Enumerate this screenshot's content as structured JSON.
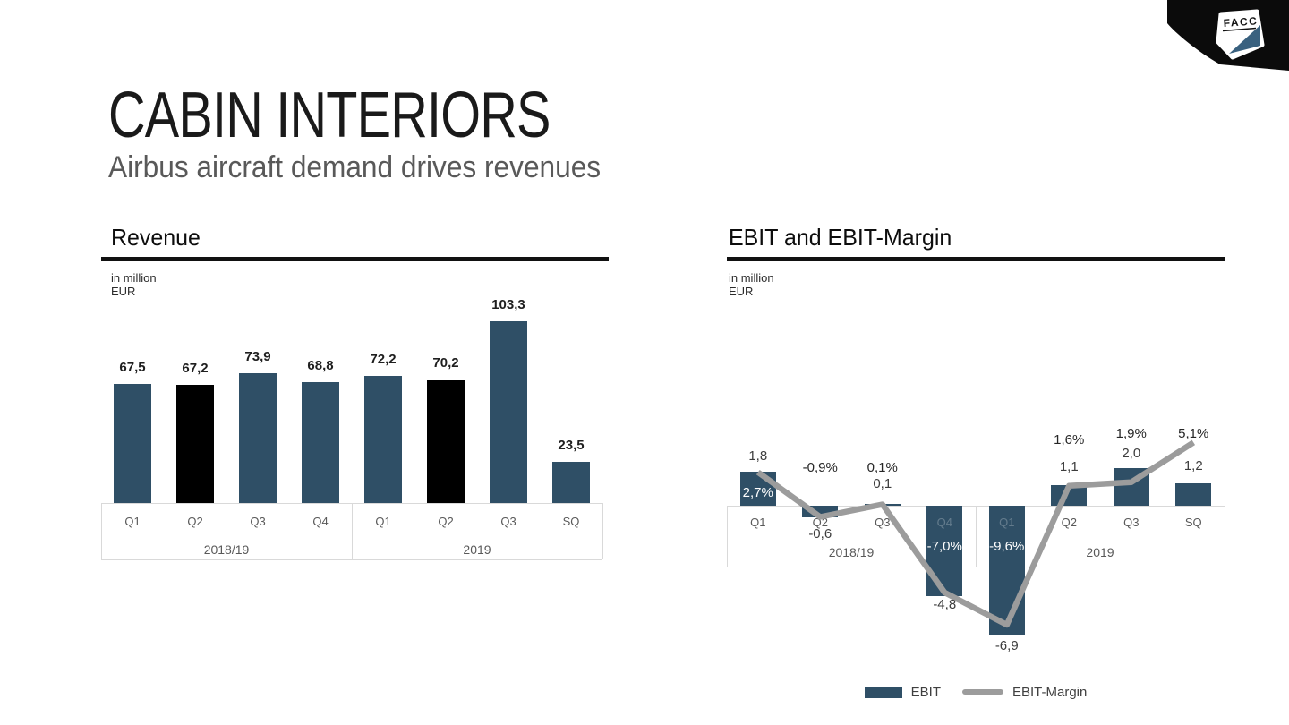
{
  "meta": {
    "brand": "FACC"
  },
  "header": {
    "title": "CABIN INTERIORS",
    "subtitle": "Airbus aircraft demand drives revenues"
  },
  "revenue": {
    "heading": "Revenue",
    "unit_line1": "in million",
    "unit_line2": "EUR",
    "categories": [
      "Q1",
      "Q2",
      "Q3",
      "Q4",
      "Q1",
      "Q2",
      "Q3",
      "SQ"
    ],
    "group_labels": [
      "2018/19",
      "2019"
    ],
    "values": [
      67.5,
      67.2,
      73.9,
      68.8,
      72.2,
      70.2,
      103.3,
      23.5
    ],
    "value_labels": [
      "67,5",
      "67,2",
      "73,9",
      "68,8",
      "72,2",
      "70,2",
      "103,3",
      "23,5"
    ],
    "highlight_indices": [
      1,
      5
    ]
  },
  "ebit": {
    "heading": "EBIT and EBIT-Margin",
    "unit_line1": "in million",
    "unit_line2": "EUR",
    "categories": [
      "Q1",
      "Q2",
      "Q3",
      "Q4",
      "Q1",
      "Q2",
      "Q3",
      "SQ"
    ],
    "group_labels": [
      "2018/19",
      "2019"
    ],
    "bar_values": [
      1.8,
      -0.6,
      0.1,
      -4.8,
      -6.9,
      1.1,
      2.0,
      1.2
    ],
    "bar_labels": [
      "1,8",
      "-0,6",
      "0,1",
      "-4,8",
      "-6,9",
      "1,1",
      "2,0",
      "1,2"
    ],
    "margin_values": [
      2.7,
      -0.9,
      0.1,
      -7.0,
      -9.6,
      1.6,
      1.9,
      5.1
    ],
    "margin_labels": [
      "2,7%",
      "-0,9%",
      "0,1%",
      "-7,0%",
      "-9,6%",
      "1,6%",
      "1,9%",
      "5,1%"
    ]
  },
  "legend": {
    "ebit": "EBIT",
    "margin": "EBIT-Margin"
  },
  "colors": {
    "bar": "#2F4F66",
    "bar_highlight": "#000000",
    "margin_line": "#9C9C9C",
    "logo_fin": "#39617F",
    "frame": "#D9D9D9"
  },
  "chart_data": [
    {
      "type": "bar",
      "title": "Revenue",
      "ylabel": "in million EUR",
      "categories": [
        "Q1 2018/19",
        "Q2 2018/19",
        "Q3 2018/19",
        "Q4 2018/19",
        "Q1 2019",
        "Q2 2019",
        "Q3 2019",
        "SQ 2019"
      ],
      "values": [
        67.5,
        67.2,
        73.9,
        68.8,
        72.2,
        70.2,
        103.3,
        23.5
      ],
      "highlighted_categories": [
        "Q2 2018/19",
        "Q2 2019"
      ],
      "legend_position": "none",
      "grid": false
    },
    {
      "type": "bar",
      "title": "EBIT and EBIT-Margin",
      "ylabel": "in million EUR",
      "categories": [
        "Q1 2018/19",
        "Q2 2018/19",
        "Q3 2018/19",
        "Q4 2018/19",
        "Q1 2019",
        "Q2 2019",
        "Q3 2019",
        "SQ 2019"
      ],
      "series": [
        {
          "name": "EBIT",
          "type": "bar",
          "unit": "million EUR",
          "values": [
            1.8,
            -0.6,
            0.1,
            -4.8,
            -6.9,
            1.1,
            2.0,
            1.2
          ]
        },
        {
          "name": "EBIT-Margin",
          "type": "line",
          "unit": "%",
          "values": [
            2.7,
            -0.9,
            0.1,
            -7.0,
            -9.6,
            1.6,
            1.9,
            5.1
          ]
        }
      ],
      "legend_position": "bottom",
      "grid": false
    }
  ]
}
